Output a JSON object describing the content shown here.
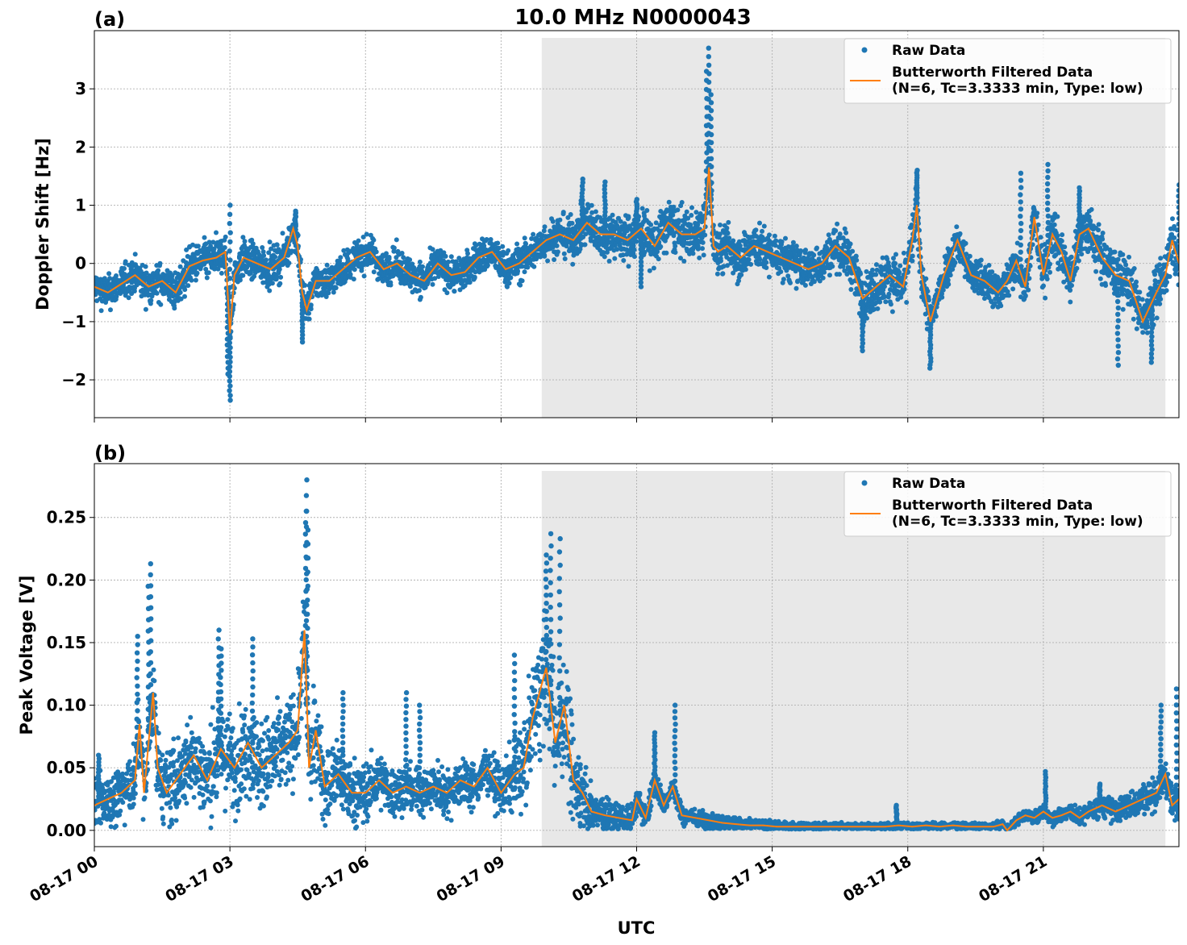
{
  "figure": {
    "title": "10.0 MHz N0000043",
    "xlabel": "UTC",
    "colors": {
      "raw": "#1f77b4",
      "filtered": "#ff7f0e",
      "night_shade": "#e8e8e8",
      "grid": "#b0b0b0"
    }
  },
  "chart_data": [
    {
      "type": "scatter",
      "panel_label": "(a)",
      "title": "10.0 MHz N0000043",
      "xlabel": "",
      "ylabel": "Doppler Shift [Hz]",
      "x_unit": "hours UTC on 08-17",
      "xlim": [
        0,
        24
      ],
      "ylim": [
        -2.65,
        4.0
      ],
      "xticks": [
        0,
        3,
        6,
        9,
        12,
        15,
        18,
        21
      ],
      "xtick_labels": [
        "08-17 00",
        "08-17 03",
        "08-17 06",
        "08-17 09",
        "08-17 12",
        "08-17 15",
        "08-17 18",
        "08-17 21"
      ],
      "yticks": [
        -2,
        -1,
        0,
        1,
        2,
        3
      ],
      "ytick_labels": [
        "−2",
        "−1",
        "0",
        "1",
        "2",
        "3"
      ],
      "grid": true,
      "shaded_region": [
        9.9,
        23.7
      ],
      "legend_position": "upper right",
      "legend": [
        "Raw Data",
        "Butterworth Filtered Data",
        "(N=6, Tc=3.3333 min, Type: low)"
      ],
      "series": [
        {
          "name": "Butterworth Filtered Data",
          "kind": "line",
          "x": [
            0,
            0.3,
            0.6,
            0.9,
            1.2,
            1.5,
            1.8,
            2.1,
            2.4,
            2.7,
            2.9,
            3.0,
            3.1,
            3.3,
            3.6,
            3.9,
            4.2,
            4.4,
            4.5,
            4.6,
            4.7,
            4.9,
            5.2,
            5.5,
            5.8,
            6.1,
            6.4,
            6.7,
            7.0,
            7.3,
            7.6,
            7.9,
            8.2,
            8.5,
            8.8,
            9.1,
            9.4,
            9.7,
            10.0,
            10.3,
            10.6,
            10.9,
            11.2,
            11.5,
            11.8,
            12.1,
            12.4,
            12.7,
            13.0,
            13.3,
            13.5,
            13.6,
            13.7,
            13.8,
            14.0,
            14.3,
            14.6,
            14.9,
            15.2,
            15.5,
            15.8,
            16.1,
            16.4,
            16.7,
            17.0,
            17.3,
            17.6,
            17.9,
            18.1,
            18.2,
            18.3,
            18.5,
            18.8,
            19.1,
            19.4,
            19.7,
            20.0,
            20.2,
            20.4,
            20.6,
            20.8,
            21.0,
            21.2,
            21.4,
            21.6,
            21.8,
            22.0,
            22.3,
            22.6,
            22.9,
            23.2,
            23.5,
            23.7,
            23.85,
            24.0
          ],
          "y": [
            -0.4,
            -0.5,
            -0.35,
            -0.2,
            -0.4,
            -0.3,
            -0.5,
            -0.05,
            0.05,
            0.1,
            0.2,
            -1.2,
            -0.2,
            0.1,
            0.0,
            -0.1,
            0.1,
            0.6,
            0.3,
            -0.5,
            -0.8,
            -0.3,
            -0.3,
            -0.1,
            0.1,
            0.2,
            -0.1,
            0.0,
            -0.2,
            -0.3,
            0.0,
            -0.2,
            -0.15,
            0.1,
            0.2,
            -0.1,
            0.0,
            0.2,
            0.4,
            0.5,
            0.4,
            0.7,
            0.5,
            0.5,
            0.4,
            0.6,
            0.3,
            0.7,
            0.5,
            0.5,
            0.6,
            1.65,
            0.3,
            0.2,
            0.3,
            0.1,
            0.3,
            0.2,
            0.1,
            0.0,
            -0.1,
            0.0,
            0.3,
            0.1,
            -0.6,
            -0.4,
            -0.2,
            -0.4,
            0.4,
            1.0,
            -0.2,
            -1.0,
            -0.2,
            0.4,
            -0.2,
            -0.3,
            -0.5,
            -0.3,
            0.05,
            -0.4,
            0.8,
            -0.2,
            0.5,
            0.2,
            -0.3,
            0.5,
            0.6,
            0.1,
            -0.2,
            -0.3,
            -1.0,
            -0.5,
            -0.2,
            0.4,
            0.0
          ]
        },
        {
          "name": "Raw Data",
          "kind": "scatter",
          "spread_x": [
            0,
            2,
            4,
            6,
            9.9,
            12,
            14,
            16,
            17,
            18,
            19,
            20,
            21,
            22,
            23,
            24
          ],
          "spread_y": [
            0.3,
            0.35,
            0.35,
            0.3,
            0.35,
            0.45,
            0.45,
            0.35,
            0.45,
            0.45,
            0.35,
            0.35,
            0.45,
            0.45,
            0.45,
            0.45
          ],
          "outliers": [
            [
              3.0,
              -2.35
            ],
            [
              2.95,
              -1.9
            ],
            [
              3.0,
              1.0
            ],
            [
              4.45,
              0.9
            ],
            [
              13.6,
              3.7
            ],
            [
              13.55,
              3.3
            ],
            [
              13.65,
              2.9
            ],
            [
              10.8,
              1.45
            ],
            [
              11.3,
              1.4
            ],
            [
              12.0,
              1.1
            ],
            [
              18.2,
              1.6
            ],
            [
              18.5,
              -1.8
            ],
            [
              20.5,
              1.55
            ],
            [
              21.1,
              1.7
            ],
            [
              21.8,
              1.3
            ],
            [
              22.65,
              -1.75
            ],
            [
              23.4,
              -1.7
            ],
            [
              24.0,
              1.35
            ],
            [
              12.1,
              -0.4
            ],
            [
              4.6,
              -1.35
            ],
            [
              17.0,
              -1.5
            ]
          ]
        }
      ]
    },
    {
      "type": "scatter",
      "panel_label": "(b)",
      "title": "",
      "xlabel": "UTC",
      "ylabel": "Peak Voltage [V]",
      "x_unit": "hours UTC on 08-17",
      "xlim": [
        0,
        24
      ],
      "ylim": [
        -0.013,
        0.293
      ],
      "xticks": [
        0,
        3,
        6,
        9,
        12,
        15,
        18,
        21
      ],
      "xtick_labels": [
        "08-17 00",
        "08-17 03",
        "08-17 06",
        "08-17 09",
        "08-17 12",
        "08-17 15",
        "08-17 18",
        "08-17 21"
      ],
      "yticks": [
        0.0,
        0.05,
        0.1,
        0.15,
        0.2,
        0.25
      ],
      "ytick_labels": [
        "0.00",
        "0.05",
        "0.10",
        "0.15",
        "0.20",
        "0.25"
      ],
      "grid": true,
      "shaded_region": [
        9.9,
        23.7
      ],
      "legend_position": "upper right",
      "legend": [
        "Raw Data",
        "Butterworth Filtered Data",
        "(N=6, Tc=3.3333 min, Type: low)"
      ],
      "series": [
        {
          "name": "Butterworth Filtered Data",
          "kind": "line",
          "x": [
            0,
            0.3,
            0.6,
            0.9,
            1.0,
            1.1,
            1.3,
            1.4,
            1.6,
            1.9,
            2.2,
            2.5,
            2.8,
            3.1,
            3.4,
            3.7,
            4.0,
            4.3,
            4.5,
            4.65,
            4.75,
            4.9,
            5.1,
            5.4,
            5.7,
            6.0,
            6.3,
            6.6,
            6.9,
            7.2,
            7.5,
            7.8,
            8.1,
            8.4,
            8.7,
            9.0,
            9.3,
            9.5,
            9.7,
            10.0,
            10.2,
            10.4,
            10.6,
            10.8,
            11.0,
            11.3,
            11.6,
            11.9,
            12.0,
            12.2,
            12.4,
            12.6,
            12.8,
            13.0,
            13.3,
            13.6,
            13.9,
            14.2,
            14.5,
            14.8,
            15.1,
            15.4,
            15.7,
            16.0,
            16.3,
            16.6,
            16.9,
            17.2,
            17.5,
            17.8,
            18.1,
            18.4,
            18.7,
            19.0,
            19.3,
            19.6,
            19.9,
            20.1,
            20.2,
            20.4,
            20.6,
            20.8,
            21.0,
            21.2,
            21.4,
            21.6,
            21.8,
            22.0,
            22.3,
            22.6,
            22.9,
            23.2,
            23.5,
            23.7,
            23.85,
            24.0
          ],
          "y": [
            0.02,
            0.025,
            0.03,
            0.04,
            0.085,
            0.03,
            0.11,
            0.05,
            0.03,
            0.045,
            0.06,
            0.04,
            0.065,
            0.05,
            0.07,
            0.05,
            0.06,
            0.07,
            0.08,
            0.16,
            0.05,
            0.08,
            0.035,
            0.045,
            0.03,
            0.03,
            0.04,
            0.03,
            0.035,
            0.03,
            0.035,
            0.03,
            0.04,
            0.035,
            0.05,
            0.03,
            0.045,
            0.05,
            0.09,
            0.13,
            0.07,
            0.1,
            0.04,
            0.03,
            0.015,
            0.012,
            0.01,
            0.008,
            0.025,
            0.01,
            0.04,
            0.02,
            0.035,
            0.012,
            0.01,
            0.008,
            0.006,
            0.005,
            0.004,
            0.004,
            0.003,
            0.003,
            0.003,
            0.003,
            0.003,
            0.003,
            0.003,
            0.003,
            0.003,
            0.004,
            0.003,
            0.004,
            0.003,
            0.004,
            0.003,
            0.003,
            0.003,
            0.005,
            0.0,
            0.008,
            0.012,
            0.01,
            0.015,
            0.01,
            0.012,
            0.015,
            0.01,
            0.015,
            0.02,
            0.015,
            0.02,
            0.025,
            0.03,
            0.045,
            0.02,
            0.025
          ]
        },
        {
          "name": "Raw Data",
          "kind": "scatter",
          "spread_x": [
            0,
            1,
            2,
            3,
            4,
            5,
            6,
            7,
            8,
            9,
            9.9,
            10.5,
            11.0,
            12,
            13,
            14,
            15,
            17,
            19,
            20,
            21,
            22,
            23,
            24
          ],
          "spread_y": [
            0.02,
            0.03,
            0.035,
            0.04,
            0.04,
            0.035,
            0.025,
            0.02,
            0.02,
            0.02,
            0.05,
            0.05,
            0.02,
            0.012,
            0.008,
            0.006,
            0.004,
            0.003,
            0.003,
            0.003,
            0.006,
            0.008,
            0.012,
            0.015
          ],
          "outliers": [
            [
              4.7,
              0.28
            ],
            [
              4.68,
              0.255
            ],
            [
              4.72,
              0.24
            ],
            [
              1.25,
              0.213
            ],
            [
              1.2,
              0.195
            ],
            [
              10.1,
              0.237
            ],
            [
              10.3,
              0.233
            ],
            [
              10.0,
              0.22
            ],
            [
              2.8,
              0.145
            ],
            [
              2.75,
              0.16
            ],
            [
              0.95,
              0.155
            ],
            [
              3.5,
              0.153
            ],
            [
              9.3,
              0.14
            ],
            [
              12.85,
              0.1
            ],
            [
              12.4,
              0.078
            ],
            [
              23.95,
              0.113
            ],
            [
              23.6,
              0.1
            ],
            [
              0.1,
              0.06
            ],
            [
              7.2,
              0.1
            ],
            [
              17.75,
              0.02
            ],
            [
              21.05,
              0.047
            ],
            [
              22.25,
              0.037
            ],
            [
              6.9,
              0.11
            ],
            [
              5.5,
              0.11
            ]
          ]
        }
      ]
    }
  ]
}
